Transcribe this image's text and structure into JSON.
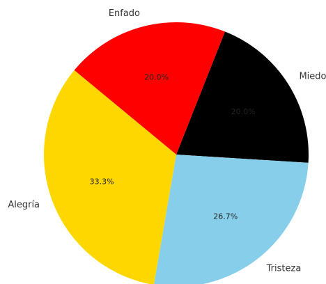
{
  "chart_data": {
    "type": "pie",
    "categories": [
      "Miedo",
      "Enfado",
      "Alegría",
      "Tristeza"
    ],
    "values": [
      20.0,
      20.0,
      33.3,
      26.7
    ],
    "value_labels": [
      "20.0%",
      "20.0%",
      "33.3%",
      "26.7%"
    ],
    "colors": [
      "#000000",
      "#ff0000",
      "#ffd700",
      "#87ceeb"
    ],
    "startangle": -3.6,
    "counterclock": true
  }
}
